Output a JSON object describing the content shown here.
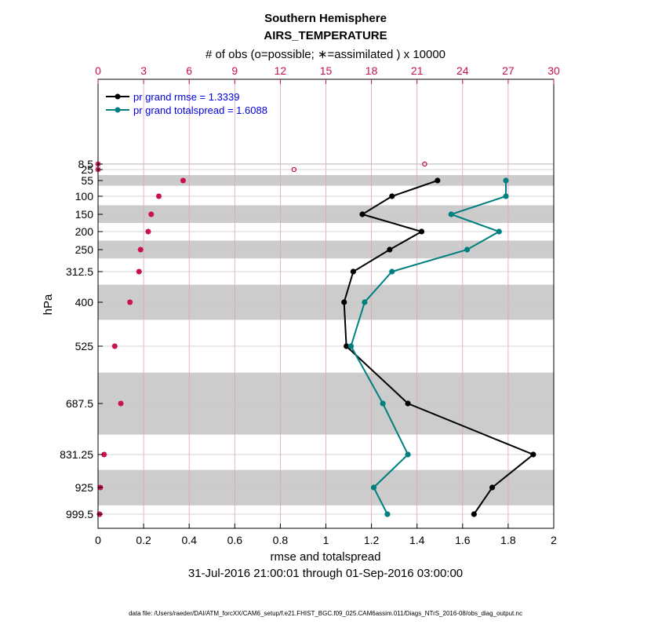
{
  "colors": {
    "accent": "#c8104e",
    "rmse": "#000000",
    "spread": "#007f7f",
    "legend_text": "#0000dd",
    "band": "#cccccc",
    "grid_red": "#d9a5b3",
    "grid_gray": "#c8c8c8"
  },
  "chart_data": {
    "type": "line",
    "title": "Southern Hemisphere",
    "subtitle": "AIRS_TEMPERATURE",
    "top_axis_label": "# of obs (o=possible; ∗=assimilated ) x 10000",
    "xlabel": "rmse and totalspread",
    "ylabel": "hPa",
    "date_range": "31-Jul-2016 21:00:01 through 01-Sep-2016 03:00:00",
    "footer": "data file: /Users/raeder/DAI/ATM_forcXX/CAM6_setup/f.e21.FHIST_BGC.f09_025.CAM6assim.011/Diags_NTrS_2016-08/obs_diag_output.nc",
    "xlim": [
      0,
      2
    ],
    "x_ticks": [
      "0",
      "0.2",
      "0.4",
      "0.6",
      "0.8",
      "1",
      "1.2",
      "1.4",
      "1.6",
      "1.8",
      "2"
    ],
    "top_xlim": [
      0,
      30
    ],
    "top_ticks": [
      "0",
      "3",
      "6",
      "9",
      "12",
      "15",
      "18",
      "21",
      "24",
      "27",
      "30"
    ],
    "levels": [
      8.5,
      25,
      55,
      100,
      150,
      200,
      250,
      312.5,
      400,
      525,
      687.5,
      831.25,
      925,
      999.5
    ],
    "level_labels": [
      "8.5",
      "25",
      "55",
      "100",
      "150",
      "200",
      "250",
      "312.5",
      "400",
      "525",
      "687.5",
      "831.25",
      "925",
      "999.5"
    ],
    "legend_position": "top-left",
    "series": [
      {
        "name": "pr grand rmse = 1.3339",
        "values": [
          null,
          null,
          1.49,
          1.29,
          1.16,
          1.42,
          1.28,
          1.12,
          1.08,
          1.09,
          1.36,
          1.91,
          1.73,
          1.65
        ]
      },
      {
        "name": "pr grand totalspread = 1.6088",
        "values": [
          null,
          null,
          1.79,
          1.79,
          1.55,
          1.76,
          1.62,
          1.29,
          1.17,
          1.11,
          1.25,
          1.36,
          1.21,
          1.27
        ]
      }
    ],
    "obs_possible": [
      21.5,
      12.9,
      5.6,
      4.0,
      3.5,
      3.3,
      2.8,
      2.7,
      2.1,
      1.1,
      1.5,
      0.4,
      0.15,
      0.1
    ],
    "obs_assimilated": [
      0.0,
      0.0,
      5.6,
      4.0,
      3.5,
      3.3,
      2.8,
      2.7,
      2.1,
      1.1,
      1.5,
      0.4,
      0.15,
      0.1
    ],
    "bands": [
      [
        7,
        10
      ],
      [
        40,
        70
      ],
      [
        125,
        175
      ],
      [
        225,
        275
      ],
      [
        350,
        450
      ],
      [
        600,
        775
      ],
      [
        875,
        975
      ]
    ]
  }
}
